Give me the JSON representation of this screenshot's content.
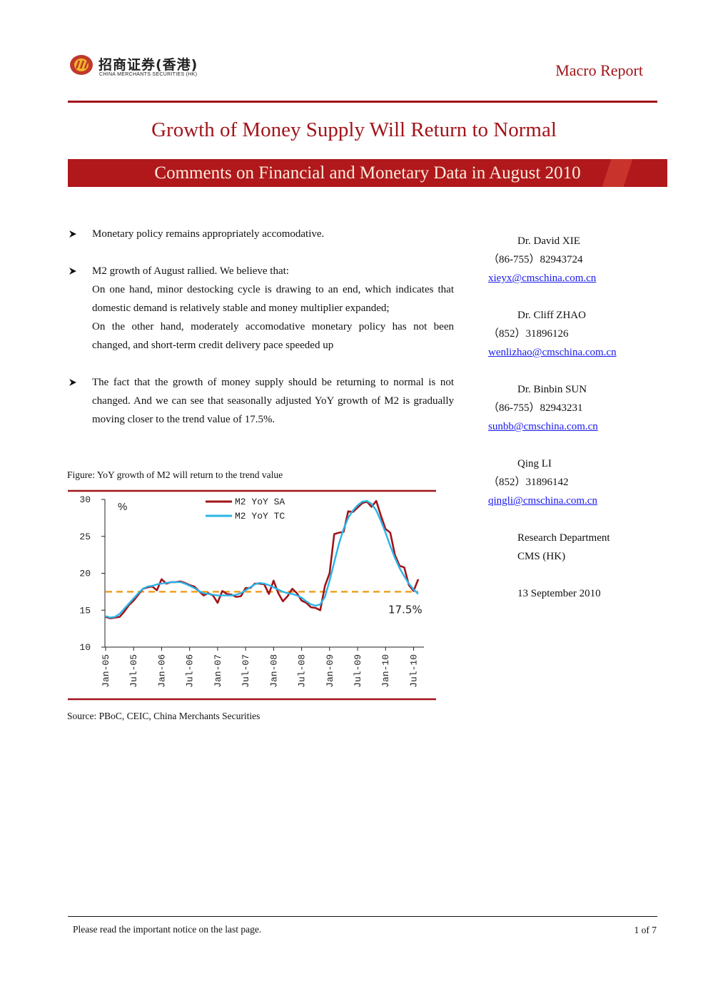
{
  "header": {
    "brand_cn": "招商证券(香港)",
    "brand_en": "CHINA MERCHANTS SECURITIES (HK)",
    "report_type": "Macro Report"
  },
  "title": "Growth of Money Supply Will Return to Normal",
  "subtitle": "Comments on Financial and Monetary Data in August 2010",
  "bullets": [
    [
      "Monetary policy remains appropriately accomodative."
    ],
    [
      "M2 growth of August rallied. We believe that:",
      "On one hand, minor destocking cycle is drawing to an end, which indicates that domestic demand is relatively stable and money multiplier expanded;",
      "On the other hand, moderately accomodative monetary policy has not been changed, and short-term credit delivery pace speeded up"
    ],
    [
      "The fact that the growth of money supply should be returning to normal is not changed. And we can see that seasonally adjusted YoY growth of M2 is gradually moving closer to the trend value of 17.5%."
    ]
  ],
  "analysts": [
    {
      "name": "Dr. David XIE",
      "phone": "（86-755）82943724",
      "email": "xieyx@cmschina.com.cn"
    },
    {
      "name": "Dr. Cliff ZHAO",
      "phone": "（852）31896126",
      "email": "wenlizhao@cmschina.com.cn"
    },
    {
      "name": "Dr. Binbin SUN",
      "phone": "（86-755）82943231",
      "email": "sunbb@cmschina.com.cn"
    },
    {
      "name": "Qing LI",
      "phone": "（852）31896142",
      "email": "qingli@cmschina.com.cn"
    }
  ],
  "department": [
    "Research Department",
    "CMS (HK)"
  ],
  "date": "13 September 2010",
  "figure_caption": "Figure: YoY growth of M2 will return to the trend value",
  "chart_data": {
    "type": "line",
    "y_label": "%",
    "categories": [
      "Jan-05",
      null,
      null,
      null,
      null,
      null,
      "Jul-05",
      null,
      null,
      null,
      null,
      null,
      "Jan-06",
      null,
      null,
      null,
      null,
      null,
      "Jul-06",
      null,
      null,
      null,
      null,
      null,
      "Jan-07",
      null,
      null,
      null,
      null,
      null,
      "Jul-07",
      null,
      null,
      null,
      null,
      null,
      "Jan-08",
      null,
      null,
      null,
      null,
      null,
      "Jul-08",
      null,
      null,
      null,
      null,
      null,
      "Jan-09",
      null,
      null,
      null,
      null,
      null,
      "Jul-09",
      null,
      null,
      null,
      null,
      null,
      "Jan-10",
      null,
      null,
      null,
      null,
      null,
      "Jul-10",
      null
    ],
    "series": [
      {
        "name": "M2 YoY SA",
        "color": "#a0141a",
        "values": [
          14.1,
          13.9,
          14.0,
          14.1,
          14.8,
          15.7,
          16.3,
          17.1,
          17.9,
          18.1,
          18.2,
          17.7,
          19.2,
          18.6,
          18.8,
          18.8,
          18.9,
          18.7,
          18.4,
          18.2,
          17.6,
          17.0,
          17.3,
          17.0,
          16.0,
          17.6,
          17.2,
          17.1,
          16.8,
          16.9,
          18.0,
          18.0,
          18.6,
          18.6,
          18.5,
          17.2,
          19.0,
          17.3,
          16.2,
          16.9,
          17.9,
          17.3,
          16.3,
          16.0,
          15.4,
          15.3,
          15.0,
          18.3,
          20.0,
          25.3,
          25.5,
          25.6,
          28.4,
          28.3,
          28.9,
          29.5,
          29.7,
          29.0,
          29.8,
          27.8,
          26.0,
          25.5,
          22.5,
          21.0,
          20.8,
          18.4,
          17.6,
          19.2
        ]
      },
      {
        "name": "M2 YoY TC",
        "color": "#29b5e8",
        "values": [
          14.2,
          14.0,
          14.1,
          14.5,
          15.2,
          15.9,
          16.6,
          17.3,
          17.9,
          18.2,
          18.3,
          18.5,
          18.6,
          18.7,
          18.8,
          18.8,
          18.8,
          18.6,
          18.3,
          18.0,
          17.6,
          17.3,
          17.2,
          17.1,
          17.0,
          17.0,
          17.0,
          17.0,
          17.1,
          17.3,
          17.7,
          18.1,
          18.5,
          18.7,
          18.6,
          18.4,
          18.1,
          17.8,
          17.5,
          17.3,
          17.2,
          17.0,
          16.7,
          16.2,
          15.8,
          15.6,
          15.8,
          16.8,
          19.0,
          21.5,
          24.0,
          26.0,
          27.5,
          28.5,
          29.2,
          29.7,
          29.8,
          29.4,
          28.5,
          27.1,
          25.5,
          23.7,
          22.1,
          20.7,
          19.6,
          18.6,
          17.8,
          17.2
        ]
      }
    ],
    "reference_line": {
      "value": 17.5,
      "label": "17.5%",
      "color": "#f0a020"
    },
    "ylim": [
      10,
      30
    ],
    "yticks": [
      10,
      15,
      20,
      25,
      30
    ],
    "grid": false
  },
  "source": "Source: PBoC, CEIC, China Merchants Securities",
  "footer": {
    "notice": "Please read the important notice on the last page.",
    "page": "1 of 7"
  }
}
